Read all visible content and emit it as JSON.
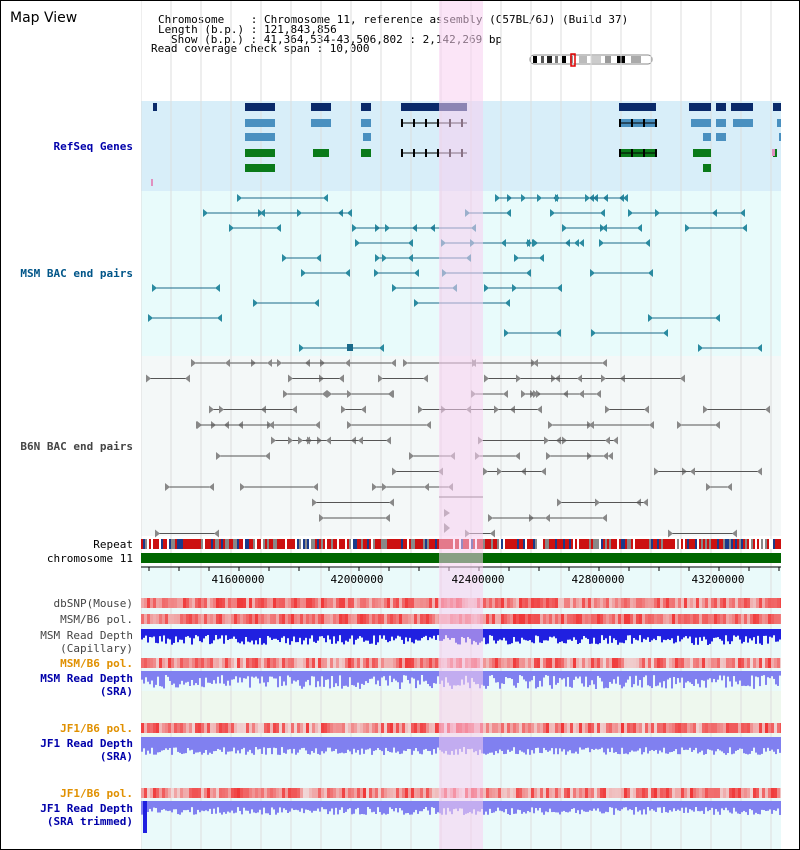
{
  "title": "Map View",
  "info": {
    "chromosome": "Chromosome    : Chromosome 11, reference assembly (C57BL/6J) (Build 37)",
    "length": "Length (b.p.) : 121,843,856",
    "show": "Show (b.p.) : 41,364,534-43,506,802 : 2,142,269 bp",
    "coverage": "Read coverage check span : 10,000"
  },
  "tracks": {
    "refseq": "RefSeq Genes",
    "msm_bac": "MSM BAC end pairs",
    "b6n_bac": "B6N BAC end pairs",
    "repeat": "Repeat",
    "chromosome": "chromosome 11",
    "dbsnp": "dbSNP(Mouse)",
    "msm_b6_pol": "MSM/B6 pol.",
    "msm_depth_cap_1": "MSM Read Depth",
    "msm_depth_cap_2": "(Capillary)",
    "msm_b6_pol_sra": "MSM/B6 pol.",
    "msm_depth_sra_1": "MSM Read Depth",
    "msm_depth_sra_2": "(SRA)",
    "jf1_b6_pol": "JF1/B6 pol.",
    "jf1_depth_1": "JF1 Read Depth",
    "jf1_depth_2": "(SRA)",
    "jf1_b6_pol_trim": "JF1/B6 pol.",
    "jf1_trim_1": "JF1 Read Depth",
    "jf1_trim_2": "(SRA trimmed)"
  },
  "axis": {
    "ticks": [
      "41600000",
      "42000000",
      "42400000",
      "42800000",
      "43200000"
    ]
  },
  "colors": {
    "refseq_bg": "#d8eef9",
    "bac_bg": "#e8fbfb",
    "highlight": "#f8d0f0",
    "gene_dark": "#0a2a6a",
    "gene_mid": "#4a90c0",
    "gene_green": "#0a7a1a",
    "msm_line": "#1a6a8a",
    "b6n_line": "#555555",
    "chrom": "#006600",
    "depth_blue": "#2020e0",
    "depth_light": "#8080f0",
    "snp_red": "#e84040"
  }
}
